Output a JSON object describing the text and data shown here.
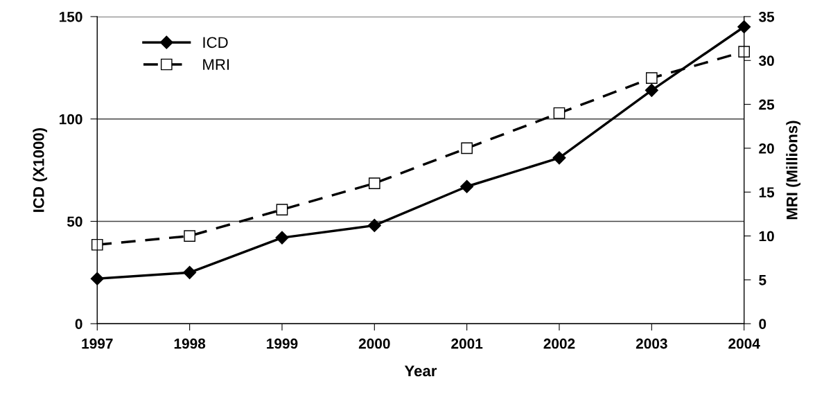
{
  "chart_data": {
    "type": "line",
    "xlabel": "Year",
    "ylabel": "ICD (X1000)",
    "y2label": "MRI (Millions)",
    "categories": [
      "1997",
      "1998",
      "1999",
      "2000",
      "2001",
      "2002",
      "2003",
      "2004"
    ],
    "series": [
      {
        "name": "ICD",
        "color": "#000000",
        "marker": "diamond",
        "line_style": "solid",
        "values": [
          22,
          25,
          42,
          48,
          67,
          81,
          114,
          145
        ]
      },
      {
        "name": "MRI",
        "color": "#000000",
        "marker": "square",
        "line_style": "dashed",
        "axis": "y2",
        "values": [
          9,
          10,
          13,
          16,
          20,
          24,
          28,
          31
        ]
      }
    ],
    "ylim": [
      0,
      150
    ],
    "yticks": [
      0,
      50,
      100,
      150
    ],
    "y2lim": [
      0,
      35
    ],
    "y2ticks": [
      0,
      5,
      10,
      15,
      20,
      25,
      30,
      35
    ],
    "grid": "y",
    "legend": "top left"
  }
}
